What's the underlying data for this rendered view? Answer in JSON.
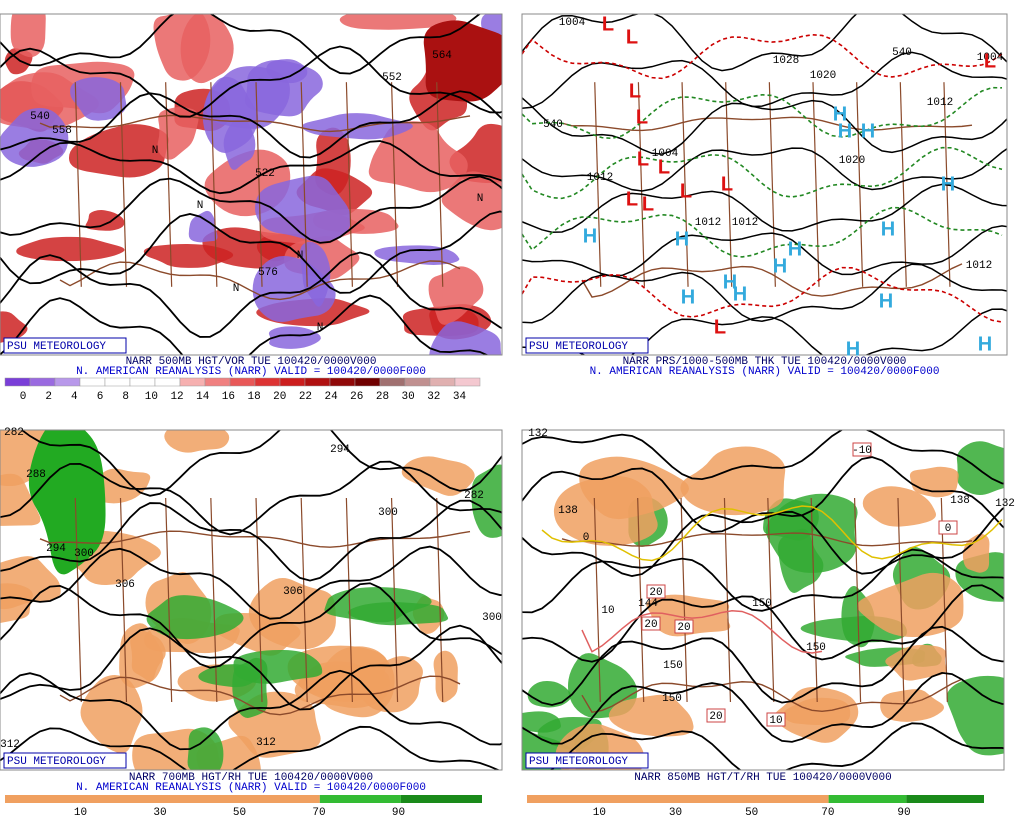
{
  "panels": [
    {
      "watermark": "PSU METEOROLOGY",
      "caption": "NARR 500MB HGT/VOR TUE 100420/0000V000",
      "subcaption": "N. AMERICAN REANALYSIS (NARR) VALID = 100420/0000F000",
      "scale_labels": [
        0,
        2,
        4,
        6,
        8,
        10,
        12,
        14,
        16,
        18,
        20,
        22,
        24,
        26,
        28,
        30,
        32,
        34
      ],
      "contour_labels": [
        "552",
        "540",
        "558",
        "564",
        "576",
        "522",
        "N",
        "N",
        "N",
        "N",
        "N",
        "N"
      ]
    },
    {
      "watermark": "PSU METEOROLOGY",
      "caption": "NARR PRS/1000-500MB THK TUE 100420/0000V000",
      "subcaption": "N. AMERICAN REANALYSIS (NARR) VALID = 100420/0000F000",
      "contour_labels": [
        "1004",
        "1028",
        "1020",
        "540",
        "540",
        "1004",
        "1012",
        "1012",
        "1012",
        "1020",
        "1012",
        "1012",
        "1004"
      ],
      "pressure_centers": [
        "L",
        "L",
        "L",
        "L",
        "L",
        "L",
        "L",
        "L",
        "L",
        "L",
        "L",
        "L",
        "H",
        "H",
        "H",
        "H",
        "H",
        "H",
        "H",
        "H",
        "H",
        "H",
        "H",
        "H",
        "H",
        "H",
        "H"
      ]
    },
    {
      "watermark": "PSU METEOROLOGY",
      "caption": "NARR 700MB HGT/RH TUE 100420/0000V000",
      "subcaption": "N. AMERICAN REANALYSIS (NARR) VALID = 100420/0000F000",
      "scale_labels": [
        10,
        30,
        50,
        70,
        90
      ],
      "contour_labels": [
        "282",
        "288",
        "294",
        "300",
        "282",
        "294",
        "300",
        "306",
        "306",
        "300",
        "312",
        "312"
      ]
    },
    {
      "watermark": "PSU METEOROLOGY",
      "caption": "NARR 850MB HGT/T/RH TUE 100420/0000V000",
      "scale_labels": [
        10,
        30,
        50,
        70,
        90
      ],
      "contour_labels": [
        "132",
        "138",
        "144",
        "150",
        "150",
        "150",
        "150",
        "132",
        "138",
        "10",
        "10",
        "0",
        "0"
      ],
      "boxed_labels": [
        "-10",
        "20",
        "20",
        "20",
        "20",
        "10",
        "0"
      ]
    }
  ]
}
